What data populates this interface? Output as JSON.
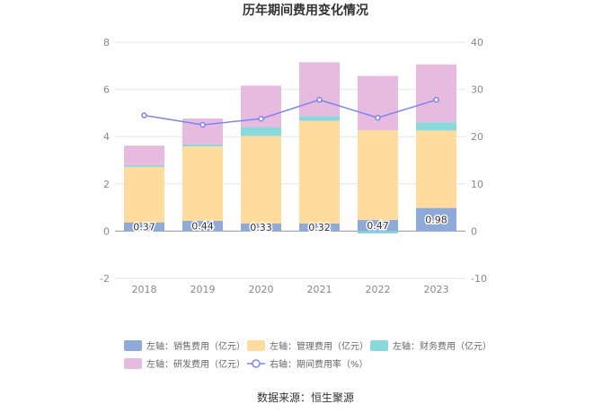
{
  "chart_data": {
    "type": "bar",
    "stacked": true,
    "title": "历年期间费用变化情况",
    "categories": [
      "2018",
      "2019",
      "2020",
      "2021",
      "2022",
      "2023"
    ],
    "left_axis": {
      "min": -2,
      "max": 8,
      "ticks": [
        "-2",
        "0",
        "2",
        "4",
        "6",
        "8"
      ]
    },
    "right_axis": {
      "min": -10,
      "max": 40,
      "ticks": [
        "-10",
        "0",
        "10",
        "20",
        "30",
        "40"
      ]
    },
    "series": [
      {
        "name": "左轴：销售费用（亿元）",
        "axis": "left",
        "color": "#8eaadb",
        "values": [
          0.37,
          0.44,
          0.33,
          0.32,
          0.47,
          0.98
        ],
        "labels": [
          "0.37",
          "0.44",
          "0.33",
          "0.32",
          "0.47",
          "0.98"
        ]
      },
      {
        "name": "左轴：管理费用（亿元）",
        "axis": "left",
        "color": "#ffdb9e",
        "values": [
          2.35,
          3.15,
          3.7,
          4.35,
          3.8,
          3.28
        ]
      },
      {
        "name": "左轴：财务费用（亿元）",
        "axis": "left",
        "color": "#88d8dc",
        "values": [
          0.08,
          0.08,
          0.38,
          0.2,
          -0.1,
          0.35
        ]
      },
      {
        "name": "左轴：研发费用（亿元）",
        "axis": "left",
        "color": "#e7bbe0",
        "values": [
          0.82,
          1.1,
          1.75,
          2.28,
          2.3,
          2.45
        ]
      },
      {
        "name": "右轴：期间费用率（%）",
        "axis": "right",
        "type": "line",
        "color": "#7b84f0",
        "values": [
          24.5,
          22.5,
          23.8,
          27.8,
          24.0,
          27.8
        ]
      }
    ]
  },
  "source": "数据来源：恒生聚源"
}
